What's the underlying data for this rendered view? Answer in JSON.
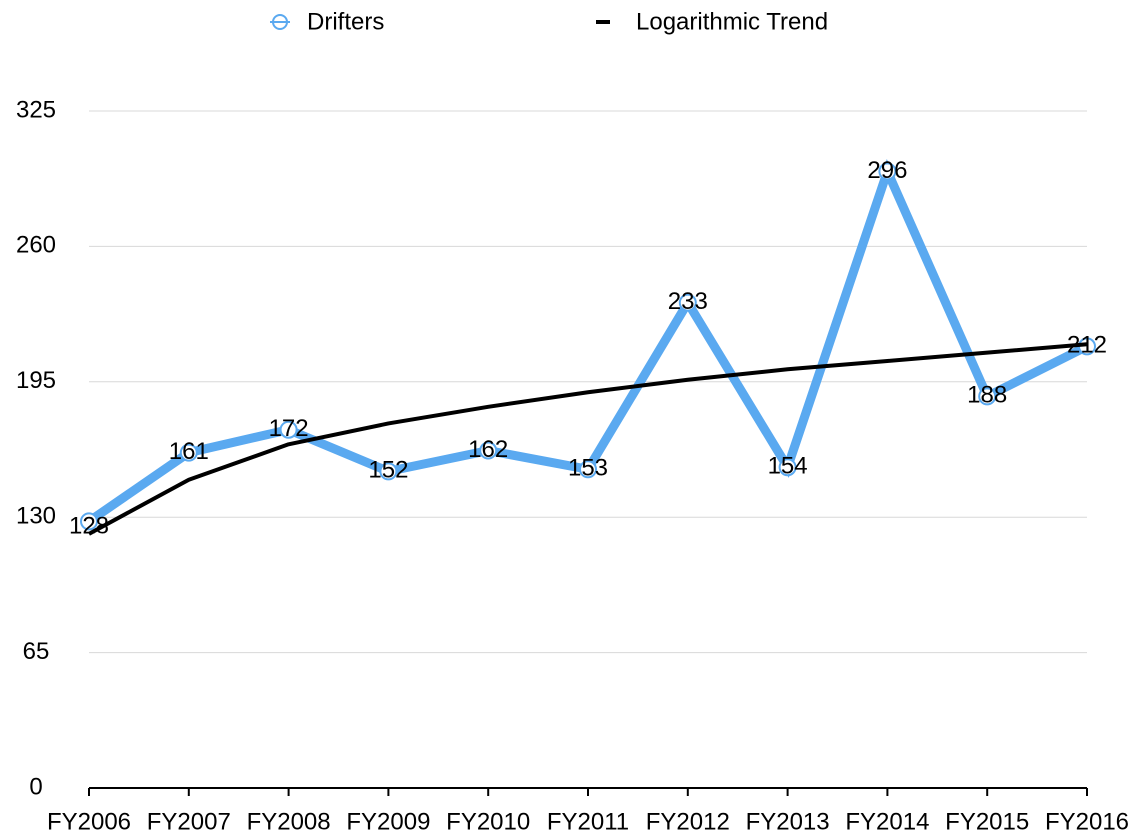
{
  "chart_data": {
    "type": "line",
    "categories": [
      "FY2006",
      "FY2007",
      "FY2008",
      "FY2009",
      "FY2010",
      "FY2011",
      "FY2012",
      "FY2013",
      "FY2014",
      "FY2015",
      "FY2016"
    ],
    "series": [
      {
        "name": "Drifters",
        "color": "#5aa9f0",
        "values": [
          128,
          161,
          172,
          152,
          162,
          153,
          233,
          154,
          296,
          188,
          212
        ]
      },
      {
        "name": "Logarithmic Trend",
        "color": "#000000",
        "values": [
          122,
          148,
          165,
          175,
          183,
          190,
          196,
          201,
          205,
          209,
          213
        ]
      }
    ],
    "ylim": [
      0,
      325
    ],
    "yticks": [
      0,
      65,
      130,
      195,
      260,
      325
    ],
    "grid": true,
    "legend": "top"
  }
}
